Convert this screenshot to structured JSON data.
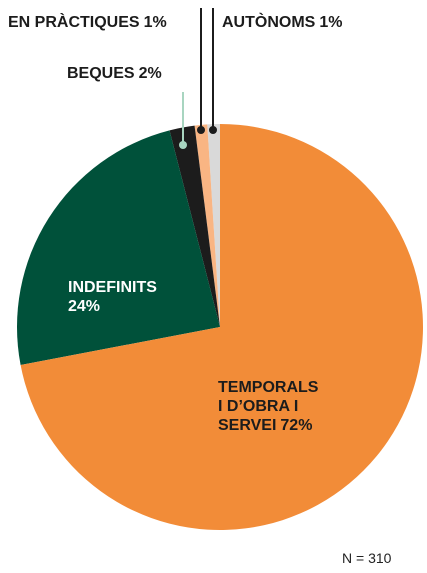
{
  "chart_data": {
    "type": "pie",
    "categories": [
      "TEMPORALS I D’OBRA I SERVEI",
      "INDEFINITS",
      "BEQUES",
      "EN PRÀCTIQUES",
      "AUTÒNOMS"
    ],
    "values": [
      72,
      24,
      2,
      1,
      1
    ],
    "value_labels": [
      "72%",
      "24%",
      "2%",
      "1%",
      "1%"
    ],
    "colors": [
      "#f28c38",
      "#00513a",
      "#1c1c1c",
      "#f9b583",
      "#d9d9d9"
    ],
    "note": "N = 310"
  }
}
